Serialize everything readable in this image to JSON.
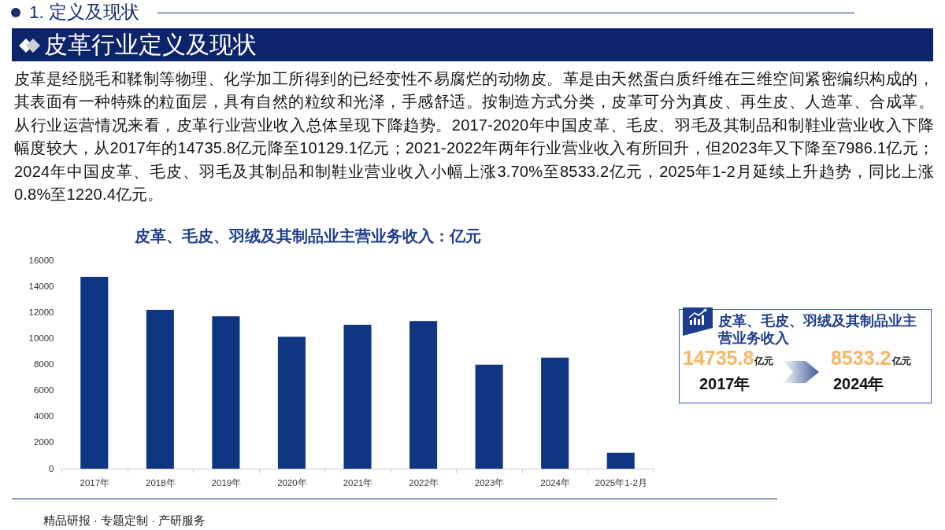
{
  "chart_data": {
    "type": "bar",
    "title": "皮革、毛皮、羽绒及其制品业主营业务收入：亿元",
    "categories": [
      "2017年",
      "2018年",
      "2019年",
      "2020年",
      "2021年",
      "2022年",
      "2023年",
      "2024年",
      "2025年1-2月"
    ],
    "values": [
      14735.8,
      12200,
      11700,
      10129.1,
      11050,
      11330,
      7986.1,
      8533.2,
      1220.4
    ],
    "color": "#0f3683",
    "ylim": [
      0,
      16000
    ],
    "yticks": [
      0,
      2000,
      4000,
      6000,
      8000,
      10000,
      12000,
      14000,
      16000
    ],
    "annotations": [
      "1. 定义及现状",
      "皮革行业定义及现状",
      "皮革是经脱毛和鞣制等物理、化学加工所得到的已经变性不易腐烂的动物皮。革是由天然蛋白质纤维在三维空间紧密编织构成的，其表面有一种特殊的粒面层，具有自然的粒纹和光泽，手感舒适。按制造方式分类，皮革可分为真皮、再生皮、人造革、合成革。从行业运营情况来看，皮革行业营业收入总体呈现下降趋势。2017-2020年中国皮革、毛皮、羽毛及其制品和制鞋业营业收入下降幅度较大，从2017年的14735.8亿元降至10129.1亿元；2021-2022年两年行业营业收入有所回升，但2023年又下降至7986.1亿元；2024年中国皮革、毛皮、羽毛及其制品和制鞋业营业收入小幅上涨3.70%至8533.2亿元，2025年1-2月延续上升趋势，同比上涨0.8%至1220.4亿元。",
      "皮革、毛皮、羽绒及其制品业主营业务收入",
      "14735.8",
      "亿元",
      "2017年",
      "8533.2",
      "亿元",
      "2024年",
      "精品研报 · 专题定制 · 产研服务"
    ]
  }
}
